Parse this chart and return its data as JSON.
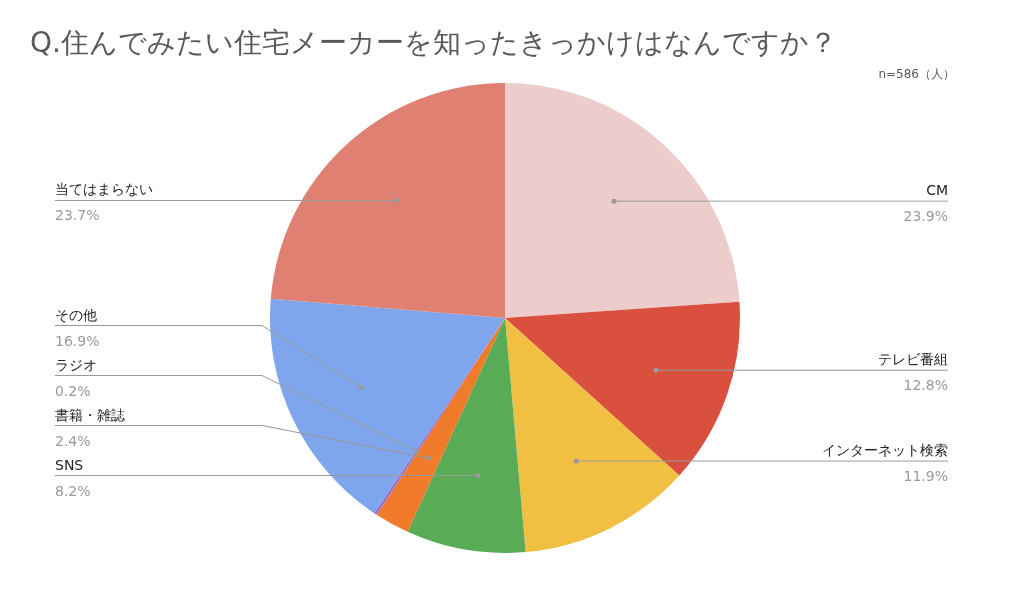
{
  "chart_data": {
    "type": "pie",
    "title": "Q.住んでみたい住宅メーカーを知ったきっかけはなんですか？",
    "subtitle": "n=586（人）",
    "categories": [
      "CM",
      "テレビ番組",
      "インターネット検索",
      "SNS",
      "書籍・雑誌",
      "ラジオ",
      "その他",
      "当てはまらない"
    ],
    "values": [
      23.9,
      12.8,
      11.9,
      8.2,
      2.4,
      0.2,
      16.9,
      23.7
    ],
    "value_labels": [
      "23.9%",
      "12.8%",
      "11.9%",
      "8.2%",
      "2.4%",
      "0.2%",
      "16.9%",
      "23.7%"
    ],
    "colors": [
      "#eccdcb",
      "#d9503f",
      "#f1bf42",
      "#5aab56",
      "#ef7b2b",
      "#9d6fd0",
      "#7fa6ec",
      "#e08073"
    ]
  }
}
